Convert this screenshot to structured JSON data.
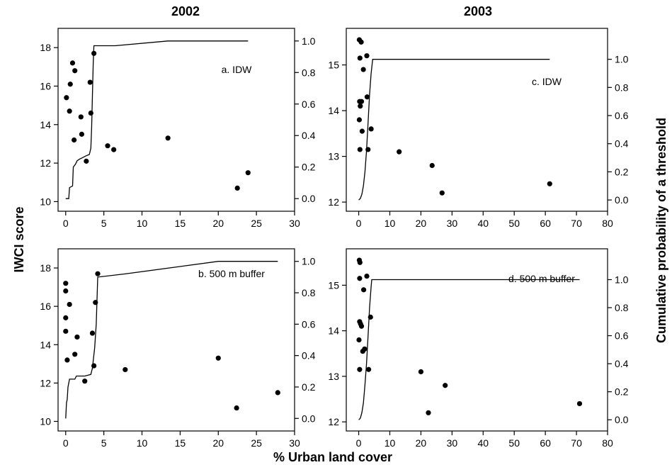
{
  "figure": {
    "col_titles": [
      "2002",
      "2003"
    ],
    "xlabel": "% Urban land cover",
    "ylabel_left": "IWCI score",
    "ylabel_right": "Cumulative probability of a threshold"
  },
  "chart_data": [
    {
      "id": "a",
      "type": "scatter",
      "annotation": "a. IDW",
      "xlim": [
        -1,
        30
      ],
      "ylim": [
        9.5,
        19
      ],
      "xticks": [
        0,
        5,
        10,
        15,
        20,
        25,
        30
      ],
      "yticks": [
        10,
        12,
        14,
        16,
        18
      ],
      "y2lim": [
        -0.08,
        1.08
      ],
      "y2ticks": [
        "0.0",
        "0.2",
        "0.4",
        "0.6",
        "0.8",
        "1.0"
      ],
      "points": [
        [
          0.1,
          15.4
        ],
        [
          0.5,
          14.7
        ],
        [
          0.6,
          16.1
        ],
        [
          0.9,
          17.2
        ],
        [
          1.1,
          13.2
        ],
        [
          1.2,
          16.8
        ],
        [
          2.0,
          14.4
        ],
        [
          2.1,
          13.5
        ],
        [
          2.7,
          12.1
        ],
        [
          3.2,
          16.2
        ],
        [
          3.3,
          14.6
        ],
        [
          3.7,
          17.7
        ],
        [
          5.5,
          12.9
        ],
        [
          6.3,
          12.7
        ],
        [
          13.4,
          13.3
        ],
        [
          22.5,
          10.7
        ],
        [
          23.9,
          11.5
        ]
      ],
      "cumulative": [
        [
          0,
          0
        ],
        [
          0.4,
          0
        ],
        [
          0.5,
          0.07
        ],
        [
          0.9,
          0.08
        ],
        [
          1.0,
          0.2
        ],
        [
          1.3,
          0.22
        ],
        [
          1.5,
          0.24
        ],
        [
          1.8,
          0.25
        ],
        [
          2.2,
          0.26
        ],
        [
          2.6,
          0.27
        ],
        [
          3.1,
          0.28
        ],
        [
          3.3,
          0.32
        ],
        [
          3.4,
          0.45
        ],
        [
          3.5,
          0.65
        ],
        [
          3.6,
          0.85
        ],
        [
          3.7,
          0.97
        ],
        [
          6.5,
          0.97
        ],
        [
          13.4,
          1.0
        ],
        [
          23.9,
          1.0
        ]
      ]
    },
    {
      "id": "b",
      "type": "scatter",
      "annotation": "b. 500 m buffer",
      "xlim": [
        -1,
        30
      ],
      "ylim": [
        9.5,
        19
      ],
      "xticks": [
        0,
        5,
        10,
        15,
        20,
        25,
        30
      ],
      "yticks": [
        10,
        12,
        14,
        16,
        18
      ],
      "y2lim": [
        -0.08,
        1.08
      ],
      "y2ticks": [
        "0.0",
        "0.2",
        "0.4",
        "0.6",
        "0.8",
        "1.0"
      ],
      "points": [
        [
          0.0,
          17.2
        ],
        [
          0.0,
          16.8
        ],
        [
          0.0,
          15.4
        ],
        [
          0.0,
          14.7
        ],
        [
          0.2,
          13.2
        ],
        [
          0.5,
          16.1
        ],
        [
          1.2,
          13.5
        ],
        [
          1.5,
          14.4
        ],
        [
          2.5,
          12.1
        ],
        [
          3.5,
          14.6
        ],
        [
          3.7,
          12.9
        ],
        [
          3.9,
          16.2
        ],
        [
          4.2,
          17.7
        ],
        [
          7.8,
          12.7
        ],
        [
          20.0,
          13.3
        ],
        [
          22.4,
          10.7
        ],
        [
          27.8,
          11.5
        ]
      ],
      "cumulative": [
        [
          0,
          0
        ],
        [
          0.1,
          0.1
        ],
        [
          0.2,
          0.12
        ],
        [
          0.3,
          0.2
        ],
        [
          0.5,
          0.25
        ],
        [
          1.2,
          0.25
        ],
        [
          1.4,
          0.27
        ],
        [
          2.5,
          0.27
        ],
        [
          3.3,
          0.28
        ],
        [
          3.5,
          0.32
        ],
        [
          3.8,
          0.45
        ],
        [
          4.0,
          0.6
        ],
        [
          4.2,
          0.9
        ],
        [
          7.8,
          0.92
        ],
        [
          20.0,
          1.0
        ],
        [
          27.8,
          1.0
        ]
      ]
    },
    {
      "id": "c",
      "type": "scatter",
      "annotation": "c. IDW",
      "xlim": [
        -4,
        80
      ],
      "ylim": [
        11.8,
        15.8
      ],
      "xticks": [
        0,
        10,
        20,
        30,
        40,
        50,
        60,
        70,
        80
      ],
      "yticks": [
        12,
        13,
        14,
        15
      ],
      "y2lim": [
        -0.08,
        1.22
      ],
      "y2ticks": [
        "0.0",
        "0.2",
        "0.4",
        "0.6",
        "0.8",
        "1.0"
      ],
      "points": [
        [
          0.2,
          15.55
        ],
        [
          0.8,
          15.5
        ],
        [
          0.4,
          15.15
        ],
        [
          1.5,
          14.9
        ],
        [
          2.6,
          15.2
        ],
        [
          0.3,
          14.2
        ],
        [
          0.5,
          14.1
        ],
        [
          0.9,
          14.2
        ],
        [
          2.7,
          14.3
        ],
        [
          0.2,
          13.8
        ],
        [
          1.1,
          13.55
        ],
        [
          4.0,
          13.6
        ],
        [
          0.4,
          13.15
        ],
        [
          3.0,
          13.15
        ],
        [
          13.0,
          13.1
        ],
        [
          23.6,
          12.8
        ],
        [
          26.8,
          12.2
        ],
        [
          61.4,
          12.4
        ]
      ],
      "cumulative": [
        [
          0,
          0
        ],
        [
          0.5,
          0.01
        ],
        [
          1.0,
          0.04
        ],
        [
          1.5,
          0.1
        ],
        [
          2.0,
          0.2
        ],
        [
          2.5,
          0.35
        ],
        [
          3.0,
          0.55
        ],
        [
          3.5,
          0.75
        ],
        [
          4.0,
          0.9
        ],
        [
          4.5,
          1.0
        ],
        [
          61.4,
          1.0
        ]
      ]
    },
    {
      "id": "d",
      "type": "scatter",
      "annotation": "d. 500 m buffer",
      "xlim": [
        -4,
        80
      ],
      "ylim": [
        11.8,
        15.8
      ],
      "xticks": [
        0,
        10,
        20,
        30,
        40,
        50,
        60,
        70,
        80
      ],
      "yticks": [
        12,
        13,
        14,
        15
      ],
      "y2lim": [
        -0.08,
        1.22
      ],
      "y2ticks": [
        "0.0",
        "0.2",
        "0.4",
        "0.6",
        "0.8",
        "1.0"
      ],
      "points": [
        [
          0.2,
          15.55
        ],
        [
          0.4,
          15.5
        ],
        [
          0.3,
          15.15
        ],
        [
          1.6,
          14.9
        ],
        [
          2.6,
          15.2
        ],
        [
          0.3,
          14.2
        ],
        [
          0.6,
          14.15
        ],
        [
          0.9,
          14.1
        ],
        [
          0.1,
          13.8
        ],
        [
          1.3,
          13.55
        ],
        [
          1.9,
          13.6
        ],
        [
          3.8,
          14.3
        ],
        [
          0.3,
          13.15
        ],
        [
          3.2,
          13.15
        ],
        [
          20.0,
          13.1
        ],
        [
          27.8,
          12.8
        ],
        [
          22.4,
          12.2
        ],
        [
          71.0,
          12.4
        ]
      ],
      "cumulative": [
        [
          0,
          0
        ],
        [
          0.5,
          0.01
        ],
        [
          1.0,
          0.05
        ],
        [
          1.5,
          0.12
        ],
        [
          2.0,
          0.25
        ],
        [
          2.5,
          0.4
        ],
        [
          3.0,
          0.6
        ],
        [
          3.5,
          0.8
        ],
        [
          4.0,
          0.95
        ],
        [
          4.2,
          1.0
        ],
        [
          71.0,
          1.0
        ]
      ]
    }
  ]
}
